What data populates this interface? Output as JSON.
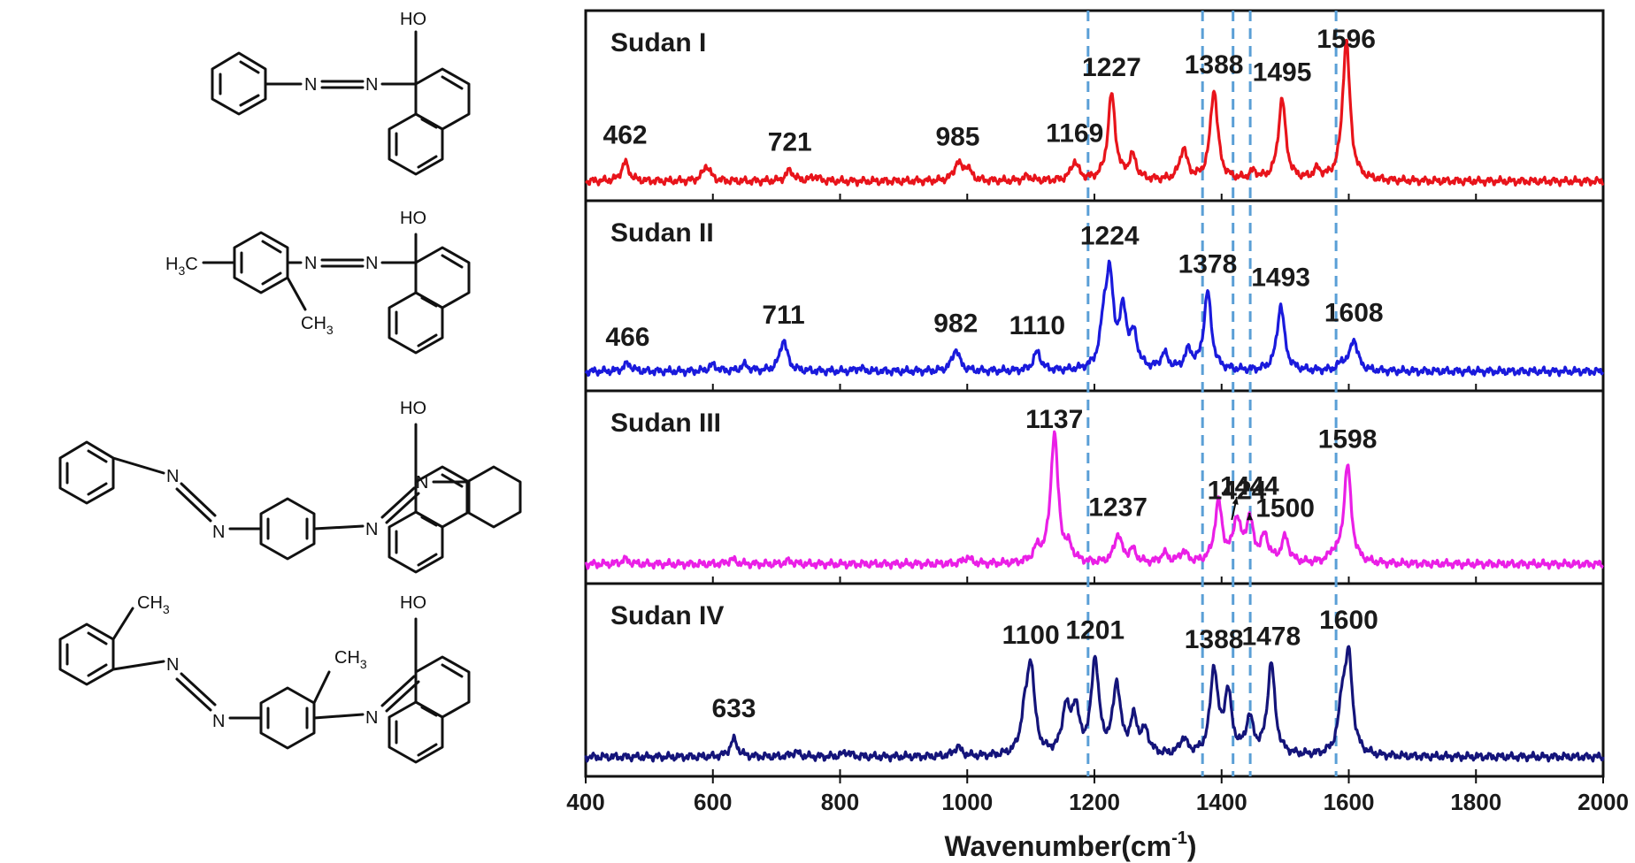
{
  "chart_data": {
    "type": "line",
    "xlabel_main": "Wavenumber(cm",
    "xlabel_sup": "-1",
    "xlabel_tail": ")",
    "xlim": [
      400,
      2000
    ],
    "xticks": [
      "400",
      "600",
      "800",
      "1000",
      "1200",
      "1400",
      "1600",
      "1800",
      "2000"
    ],
    "reference_lines": [
      1190,
      1370,
      1418,
      1445,
      1580
    ],
    "panels": [
      {
        "name": "Sudan I",
        "color": "#e8141b",
        "baseline": 0.06,
        "peaks": [
          [
            462,
            0.12
          ],
          [
            590,
            0.1
          ],
          [
            721,
            0.07
          ],
          [
            760,
            0.03
          ],
          [
            985,
            0.11
          ],
          [
            1000,
            0.08
          ],
          [
            1095,
            0.03
          ],
          [
            1169,
            0.12
          ],
          [
            1227,
            0.55
          ],
          [
            1260,
            0.15
          ],
          [
            1340,
            0.2
          ],
          [
            1388,
            0.58
          ],
          [
            1450,
            0.05
          ],
          [
            1495,
            0.52
          ],
          [
            1550,
            0.06
          ],
          [
            1596,
            0.9
          ]
        ],
        "labels": [
          {
            "text": "462",
            "x": 462
          },
          {
            "text": "721",
            "x": 721
          },
          {
            "text": "985",
            "x": 985
          },
          {
            "text": "1169",
            "x": 1169
          },
          {
            "text": "1227",
            "x": 1227
          },
          {
            "text": "1388",
            "x": 1388
          },
          {
            "text": "1495",
            "x": 1495
          },
          {
            "text": "1596",
            "x": 1596
          }
        ]
      },
      {
        "name": "Sudan II",
        "color": "#1a1adc",
        "baseline": 0.06,
        "peaks": [
          [
            466,
            0.05
          ],
          [
            600,
            0.04
          ],
          [
            650,
            0.04
          ],
          [
            711,
            0.2
          ],
          [
            830,
            0.02
          ],
          [
            982,
            0.14
          ],
          [
            1110,
            0.12
          ],
          [
            1215,
            0.25
          ],
          [
            1224,
            0.55
          ],
          [
            1245,
            0.35
          ],
          [
            1262,
            0.2
          ],
          [
            1310,
            0.1
          ],
          [
            1348,
            0.12
          ],
          [
            1378,
            0.5
          ],
          [
            1493,
            0.42
          ],
          [
            1590,
            0.05
          ],
          [
            1608,
            0.2
          ]
        ],
        "labels": [
          {
            "text": "466",
            "x": 466
          },
          {
            "text": "711",
            "x": 711
          },
          {
            "text": "982",
            "x": 982
          },
          {
            "text": "1110",
            "x": 1110
          },
          {
            "text": "1224",
            "x": 1224
          },
          {
            "text": "1378",
            "x": 1378
          },
          {
            "text": "1493",
            "x": 1493
          },
          {
            "text": "1608",
            "x": 1608
          }
        ]
      },
      {
        "name": "Sudan III",
        "color": "#ea1fe6",
        "baseline": 0.06,
        "peaks": [
          [
            462,
            0.03
          ],
          [
            630,
            0.03
          ],
          [
            720,
            0.02
          ],
          [
            1000,
            0.04
          ],
          [
            1110,
            0.08
          ],
          [
            1137,
            0.82
          ],
          [
            1160,
            0.08
          ],
          [
            1237,
            0.18
          ],
          [
            1260,
            0.08
          ],
          [
            1310,
            0.06
          ],
          [
            1340,
            0.07
          ],
          [
            1395,
            0.38
          ],
          [
            1424,
            0.26
          ],
          [
            1444,
            0.26
          ],
          [
            1468,
            0.16
          ],
          [
            1500,
            0.16
          ],
          [
            1575,
            0.05
          ],
          [
            1598,
            0.62
          ]
        ],
        "labels": [
          {
            "text": "1137",
            "x": 1137
          },
          {
            "text": "1237",
            "x": 1237
          },
          {
            "text": "1424",
            "x": 1424
          },
          {
            "text": "1444",
            "x": 1444
          },
          {
            "text": "1500",
            "x": 1500
          },
          {
            "text": "1598",
            "x": 1598
          }
        ]
      },
      {
        "name": "Sudan IV",
        "color": "#14147a",
        "baseline": 0.06,
        "peaks": [
          [
            633,
            0.11
          ],
          [
            730,
            0.03
          ],
          [
            810,
            0.03
          ],
          [
            985,
            0.06
          ],
          [
            1090,
            0.2
          ],
          [
            1100,
            0.55
          ],
          [
            1155,
            0.28
          ],
          [
            1170,
            0.28
          ],
          [
            1201,
            0.6
          ],
          [
            1235,
            0.44
          ],
          [
            1262,
            0.22
          ],
          [
            1280,
            0.14
          ],
          [
            1340,
            0.1
          ],
          [
            1388,
            0.54
          ],
          [
            1410,
            0.38
          ],
          [
            1444,
            0.22
          ],
          [
            1478,
            0.58
          ],
          [
            1590,
            0.3
          ],
          [
            1600,
            0.58
          ]
        ],
        "labels": [
          {
            "text": "633",
            "x": 633
          },
          {
            "text": "1100",
            "x": 1100
          },
          {
            "text": "1201",
            "x": 1201
          },
          {
            "text": "1388",
            "x": 1388
          },
          {
            "text": "1478",
            "x": 1478
          },
          {
            "text": "1600",
            "x": 1600
          }
        ]
      }
    ]
  },
  "structures": {
    "oh": "HO",
    "n": "N",
    "h3c_h": "H",
    "h3c_c": "C",
    "ch3_main": "CH",
    "sub3": "3",
    "methyl_text": "CH",
    "methyl_sub": "3"
  }
}
